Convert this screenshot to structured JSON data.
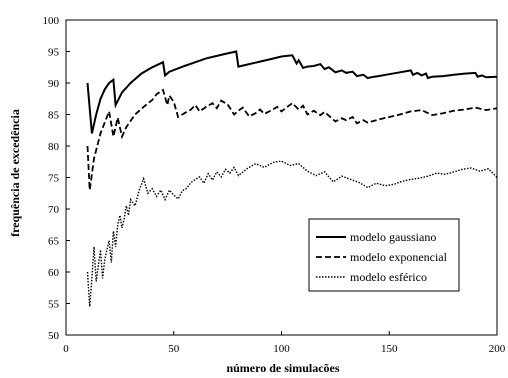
{
  "chart_data": {
    "type": "line",
    "xlabel": "número de simulacões",
    "ylabel": "frequência de excedência",
    "xlim": [
      0,
      200
    ],
    "ylim": [
      50,
      100
    ],
    "xticks": [
      0,
      50,
      100,
      150,
      200
    ],
    "yticks": [
      50,
      55,
      60,
      65,
      70,
      75,
      80,
      85,
      90,
      95,
      100
    ],
    "grid": false,
    "legend_position": "bottom-right",
    "series": [
      {
        "name": "modelo gaussiano",
        "dash": "solid",
        "x": [
          10,
          12,
          14,
          16,
          18,
          20,
          22,
          23,
          26,
          30,
          35,
          40,
          45,
          46,
          48,
          55,
          60,
          65,
          70,
          75,
          79,
          80,
          85,
          90,
          95,
          100,
          105,
          107,
          108,
          110,
          112,
          115,
          118,
          120,
          122,
          125,
          128,
          130,
          133,
          135,
          138,
          140,
          143,
          145,
          150,
          155,
          160,
          161,
          163,
          165,
          167,
          168,
          170,
          175,
          180,
          185,
          190,
          191,
          193,
          195,
          200
        ],
        "values": [
          90,
          82,
          85,
          87.5,
          89,
          90,
          90.5,
          86.5,
          88.5,
          90,
          91.5,
          92.5,
          93.3,
          91.2,
          91.8,
          92.7,
          93.3,
          93.9,
          94.3,
          94.7,
          95,
          92.6,
          93,
          93.4,
          93.8,
          94.2,
          94.4,
          93.1,
          93.6,
          92.4,
          92.6,
          92.7,
          93,
          92.2,
          92.5,
          91.7,
          92,
          91.6,
          91.8,
          91.1,
          91.3,
          90.8,
          91,
          91.1,
          91.4,
          91.7,
          92,
          91.3,
          91.6,
          91.2,
          91.5,
          90.8,
          91,
          91.1,
          91.3,
          91.5,
          91.6,
          91,
          91.2,
          90.9,
          91
        ]
      },
      {
        "name": "modelo exponencial",
        "dash": "dashed",
        "x": [
          10,
          11,
          13,
          16,
          20,
          22,
          24,
          26,
          28,
          32,
          36,
          40,
          42,
          45,
          47,
          48,
          50,
          52,
          55,
          58,
          60,
          62,
          65,
          68,
          70,
          72,
          75,
          78,
          80,
          82,
          85,
          88,
          90,
          92,
          95,
          98,
          100,
          103,
          105,
          108,
          110,
          112,
          115,
          118,
          120,
          125,
          128,
          130,
          133,
          135,
          138,
          140,
          145,
          150,
          155,
          160,
          165,
          170,
          175,
          180,
          185,
          190,
          195,
          200
        ],
        "values": [
          80,
          73,
          78,
          82,
          85.5,
          81.5,
          84.5,
          81.5,
          83,
          85,
          86.2,
          87.3,
          88.2,
          88.9,
          86.5,
          88,
          87,
          84.6,
          85.2,
          85.8,
          86.5,
          85.5,
          86.2,
          86.8,
          86,
          87.2,
          86.6,
          85,
          85.6,
          86.1,
          84.7,
          85.2,
          85.8,
          85.1,
          85.6,
          86.2,
          85.5,
          86.3,
          86.8,
          85.8,
          86.4,
          85,
          85.6,
          84.9,
          85.4,
          83.9,
          84.4,
          84.1,
          84.6,
          83.6,
          84.1,
          83.7,
          84.2,
          84.6,
          85,
          85.5,
          85.7,
          84.9,
          85.2,
          85.6,
          85.8,
          86.1,
          85.7,
          86
        ]
      },
      {
        "name": "modelo esférico",
        "dash": "dotted",
        "x": [
          10,
          11,
          12,
          13,
          14,
          15,
          16,
          17,
          18,
          19,
          20,
          21,
          22,
          23,
          24,
          25,
          26,
          27,
          28,
          29,
          30,
          32,
          34,
          36,
          38,
          40,
          42,
          44,
          46,
          48,
          50,
          52,
          54,
          56,
          58,
          60,
          62,
          64,
          66,
          68,
          70,
          72,
          74,
          76,
          78,
          80,
          84,
          88,
          92,
          96,
          100,
          104,
          108,
          112,
          116,
          120,
          124,
          128,
          132,
          136,
          140,
          144,
          148,
          152,
          156,
          160,
          164,
          168,
          172,
          176,
          180,
          184,
          188,
          192,
          196,
          200
        ],
        "values": [
          60,
          54.5,
          59,
          64,
          58.5,
          61,
          63.5,
          59,
          62,
          63.5,
          65,
          61.5,
          66.5,
          64,
          67.5,
          69,
          67,
          68.5,
          70.5,
          69,
          71.5,
          70.5,
          73,
          74.8,
          72.5,
          73.2,
          72,
          73,
          71.5,
          73,
          72.2,
          71.6,
          72.9,
          73.3,
          74.2,
          74.7,
          75.1,
          74.1,
          75.6,
          74.6,
          75.9,
          75.1,
          76.3,
          75.7,
          76.6,
          75.3,
          76.4,
          77.2,
          76.6,
          77.4,
          77.6,
          76.9,
          77.2,
          76,
          75.3,
          75.9,
          74.3,
          75.2,
          74.7,
          74.2,
          73.4,
          74.1,
          73.7,
          73.9,
          74.4,
          74.7,
          74.9,
          75.2,
          75.7,
          75.5,
          75.9,
          76.3,
          76.5,
          76,
          76.4,
          75
        ]
      }
    ]
  }
}
